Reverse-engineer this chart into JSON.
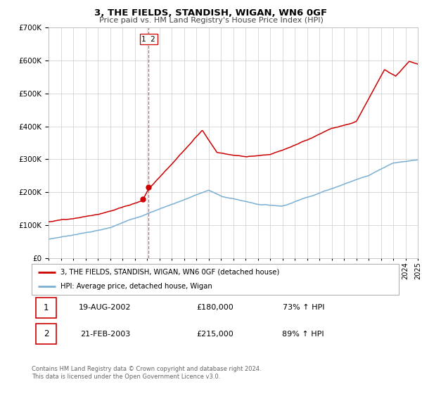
{
  "title": "3, THE FIELDS, STANDISH, WIGAN, WN6 0GF",
  "subtitle": "Price paid vs. HM Land Registry's House Price Index (HPI)",
  "red_label": "3, THE FIELDS, STANDISH, WIGAN, WN6 0GF (detached house)",
  "blue_label": "HPI: Average price, detached house, Wigan",
  "annotation1_num": "1",
  "annotation1_date": "19-AUG-2002",
  "annotation1_price": "£180,000",
  "annotation1_hpi": "73% ↑ HPI",
  "annotation2_num": "2",
  "annotation2_date": "21-FEB-2003",
  "annotation2_price": "£215,000",
  "annotation2_hpi": "89% ↑ HPI",
  "footnote1": "Contains HM Land Registry data © Crown copyright and database right 2024.",
  "footnote2": "This data is licensed under the Open Government Licence v3.0.",
  "dashed_line_x": 2003.12,
  "point1_x": 2002.63,
  "point1_y": 180000,
  "point2_x": 2003.12,
  "point2_y": 215000,
  "ylim": [
    0,
    700000
  ],
  "xlim_start": 1995,
  "xlim_end": 2025,
  "background_color": "#ffffff",
  "grid_color": "#cccccc",
  "red_color": "#cc0000",
  "blue_color": "#7bafd4",
  "title_fontsize": 9.5,
  "subtitle_fontsize": 8.0
}
